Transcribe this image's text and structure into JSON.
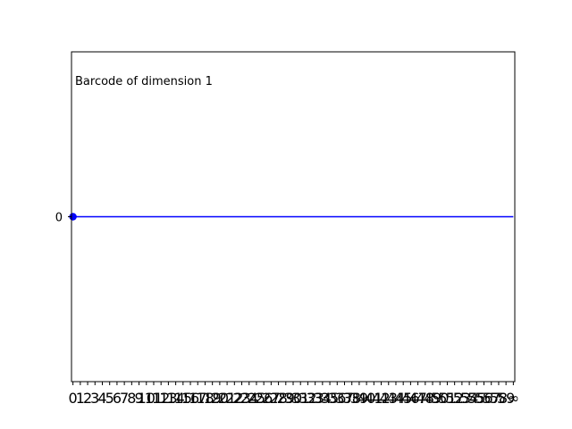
{
  "chart_data": {
    "type": "line",
    "title": "",
    "xlabel": "",
    "ylabel": "",
    "annotation": "Barcode of dimension 1",
    "x_ticks": [
      "0",
      "1",
      "2",
      "3",
      "4",
      "5",
      "6",
      "7",
      "8",
      "9",
      "10",
      "11",
      "12",
      "13",
      "14",
      "15",
      "16",
      "17",
      "18",
      "19",
      "20",
      "21",
      "22",
      "23",
      "24",
      "25",
      "26",
      "27",
      "28",
      "29",
      "30",
      "31",
      "32",
      "33",
      "34",
      "35",
      "36",
      "37",
      "38",
      "39",
      "40",
      "41",
      "42",
      "43",
      "44",
      "45",
      "46",
      "47",
      "48",
      "49",
      "50",
      "51",
      "52",
      "53",
      "54",
      "55",
      "56",
      "57",
      "58",
      "59",
      "∞"
    ],
    "y_ticks": [
      "0"
    ],
    "xlim": [
      -0.2,
      60.2
    ],
    "ylim": [
      -1,
      1
    ],
    "series": [
      {
        "bars": [
          {
            "birth": 0,
            "death": "∞",
            "y": 0
          }
        ]
      }
    ],
    "colors": {
      "bar": "#0000ff",
      "axes": "#000000"
    },
    "grid": false
  }
}
